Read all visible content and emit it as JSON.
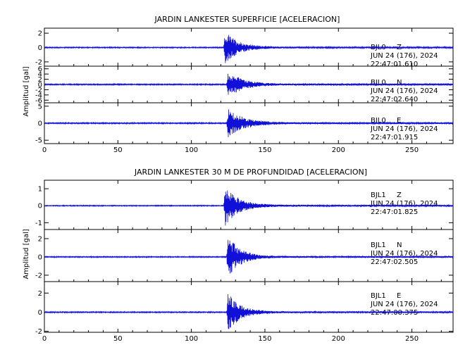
{
  "chart_data": [
    {
      "type": "line",
      "title": "JARDIN LANKESTER SUPERFICIE [ACELERACION]",
      "ylabel": "Amplitud [gal]",
      "xlim": [
        0,
        278
      ],
      "x_ticks": [
        0,
        50,
        100,
        150,
        200,
        250
      ],
      "series": [
        {
          "name": "BJL0 Z",
          "station": "BJL0",
          "component": "Z",
          "date": "JUN 24 (176), 2024",
          "time": "22:47:01.610",
          "ylim": [
            -2.6,
            2.7
          ],
          "y_ticks": [
            -2,
            0,
            2
          ],
          "onset": 122,
          "peak": 2.5,
          "noise": 0.05,
          "decay": 9
        },
        {
          "name": "BJL0 N",
          "station": "BJL0",
          "component": "N",
          "date": "JUN 24 (176), 2024",
          "time": "22:47:02.640",
          "ylim": [
            -7,
            7
          ],
          "y_ticks": [
            -6,
            -4,
            -2,
            0,
            2,
            4,
            6
          ],
          "onset": 124,
          "peak": 5.5,
          "noise": 0.15,
          "decay": 10
        },
        {
          "name": "BJL0 E",
          "station": "BJL0",
          "component": "E",
          "date": "JUN 24 (176), 2024",
          "time": "22:47:01.915",
          "ylim": [
            -6,
            6
          ],
          "y_ticks": [
            -5,
            0,
            5
          ],
          "onset": 124,
          "peak": 4.5,
          "noise": 0.12,
          "decay": 11
        }
      ]
    },
    {
      "type": "line",
      "title": "JARDIN LANKESTER 30 M DE PROFUNDIDAD [ACELERACION]",
      "ylabel": "Amplitud [gal]",
      "xlim": [
        0,
        278
      ],
      "x_ticks": [
        0,
        50,
        100,
        150,
        200,
        250
      ],
      "series": [
        {
          "name": "BJL1 Z",
          "station": "BJL1",
          "component": "Z",
          "date": "JUN 24 (176), 2024",
          "time": "22:47:01.825",
          "ylim": [
            -1.4,
            1.5
          ],
          "y_ticks": [
            -1,
            0,
            1
          ],
          "onset": 122,
          "peak": 1.3,
          "noise": 0.02,
          "decay": 9
        },
        {
          "name": "BJL1 N",
          "station": "BJL1",
          "component": "N",
          "date": "JUN 24 (176), 2024",
          "time": "22:47:02.505",
          "ylim": [
            -2.7,
            3
          ],
          "y_ticks": [
            -2,
            0,
            2
          ],
          "onset": 124,
          "peak": 2.6,
          "noise": 0.04,
          "decay": 8
        },
        {
          "name": "BJL1 E",
          "station": "BJL1",
          "component": "E",
          "date": "JUN 24 (176), 2024",
          "time": "22:47:00.375",
          "ylim": [
            -2.1,
            3.2
          ],
          "y_ticks": [
            -2,
            0,
            2
          ],
          "onset": 124,
          "peak": 2.3,
          "noise": 0.04,
          "decay": 8
        }
      ]
    }
  ],
  "colors": {
    "trace": "#1010d8",
    "axis": "#000000",
    "background": "#ffffff"
  }
}
